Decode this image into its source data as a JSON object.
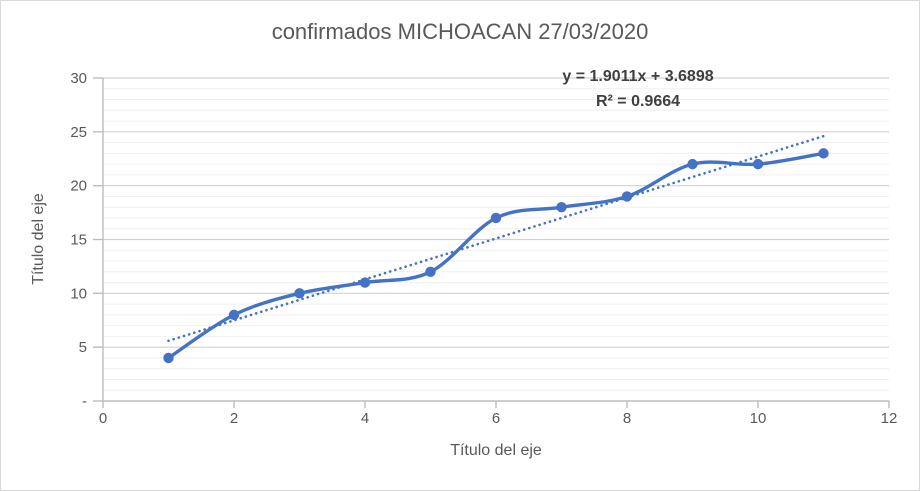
{
  "chart": {
    "background": "#FFFFFF",
    "border_color": "#D9D9D9"
  },
  "chart_data": {
    "type": "line",
    "title": "confirmados MICHOACAN 27/03/2020",
    "xlabel": "Título del eje",
    "ylabel": "Título del eje",
    "x": [
      1,
      2,
      3,
      4,
      5,
      6,
      7,
      8,
      9,
      10,
      11
    ],
    "series": [
      {
        "name": "confirmados",
        "values": [
          4,
          8,
          10,
          11,
          12,
          17,
          18,
          19,
          22,
          22,
          23
        ]
      }
    ],
    "xlim": [
      0,
      12
    ],
    "ylim": [
      0,
      30
    ],
    "x_ticks": {
      "values": [
        0,
        2,
        4,
        6,
        8,
        10,
        12
      ],
      "labels": [
        "0",
        "2",
        "4",
        "6",
        "8",
        "10",
        "12"
      ]
    },
    "y_ticks": {
      "values": [
        30,
        25,
        20,
        15,
        10,
        5,
        0
      ],
      "labels": [
        "30",
        "25",
        "20",
        "15",
        "10",
        "5",
        "-"
      ]
    },
    "y_minor_step": 1,
    "grid": "horizontal major and minor, no vertical gridlines",
    "legend": "none",
    "smoothed": true,
    "marker": "circle",
    "trendline": {
      "slope": 1.9011,
      "intercept": 3.6898,
      "equation_label": "y = 1.9011x + 3.6898",
      "r2_label": "R² = 0.9664",
      "x_range": [
        1.0,
        11.05
      ],
      "style": "dotted"
    },
    "colors": {
      "series": "#4472C4",
      "trendline": "#4472C4",
      "title": "#595959",
      "axis_titles": "#595959",
      "tick_labels": "#595959",
      "equation": "#3F3F3F",
      "major_gridline": "#D2D2D2",
      "minor_gridline": "#EFEFEF",
      "axis_line": "#BDBDBD"
    }
  }
}
